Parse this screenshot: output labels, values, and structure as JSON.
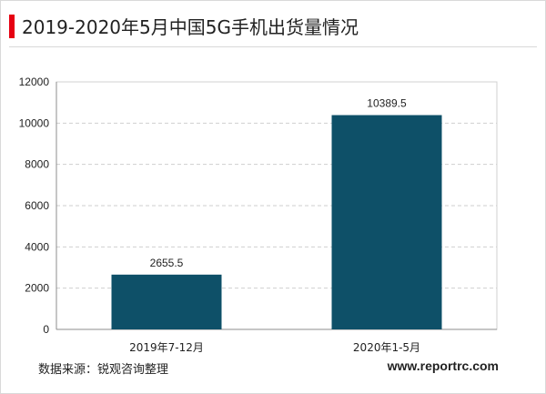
{
  "page": {
    "title": "2019-2020年5月中国5G手机出货量情况",
    "source": "数据来源：锐观咨询整理",
    "website": "www.reportrc.com",
    "accent_color": "#e60012",
    "bar_color": "#0e5068"
  },
  "chart_data": {
    "type": "bar",
    "categories": [
      "2019年7-12月",
      "2020年1-5月"
    ],
    "values": [
      2655.5,
      10389.5
    ],
    "value_labels": [
      "2655.5",
      "10389.5"
    ],
    "title": "2019-2020年5月中国5G手机出货量情况",
    "xlabel": "",
    "ylabel": "",
    "ylim": [
      0,
      12000
    ],
    "yticks": [
      0,
      2000,
      4000,
      6000,
      8000,
      10000,
      12000
    ],
    "grid": true,
    "legend": "none"
  }
}
